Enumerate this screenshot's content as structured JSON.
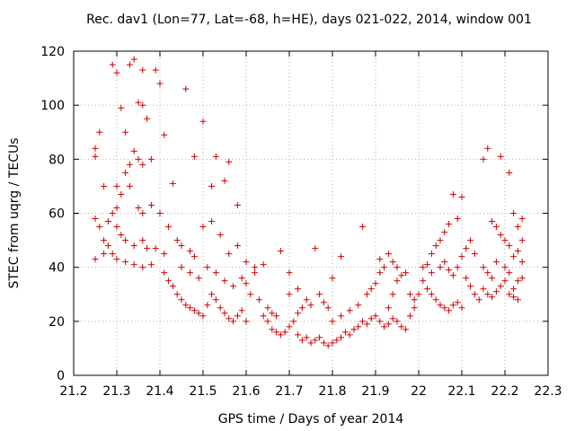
{
  "chart_data": {
    "type": "scatter",
    "title": "Rec. dav1 (Lon=77, Lat=-68, h=HE), days 021-022, 2014, window 001",
    "xlabel": "GPS time / Days of year 2014",
    "ylabel": "STEC from uqrg / TECUs",
    "xlim": [
      21.2,
      22.3
    ],
    "ylim": [
      0,
      120
    ],
    "x_ticks": [
      "21.2",
      "21.3",
      "21.4",
      "21.5",
      "21.6",
      "21.7",
      "21.8",
      "21.9",
      "22",
      "22.1",
      "22.2",
      "22.3"
    ],
    "y_ticks": [
      "0",
      "20",
      "40",
      "60",
      "80",
      "100",
      "120"
    ],
    "grid": true,
    "marker": "+",
    "colors": {
      "points": "#cc0000",
      "grid": "#b0b0b0",
      "axis": "#000000"
    },
    "series": [
      {
        "points": [
          [
            21.25,
            84
          ],
          [
            21.25,
            81
          ],
          [
            21.26,
            90
          ],
          [
            21.27,
            70
          ],
          [
            21.25,
            58
          ],
          [
            21.26,
            55
          ],
          [
            21.27,
            50
          ],
          [
            21.28,
            48
          ],
          [
            21.25,
            43
          ],
          [
            21.27,
            45
          ],
          [
            21.29,
            115
          ],
          [
            21.3,
            112
          ],
          [
            21.31,
            99
          ],
          [
            21.32,
            90
          ],
          [
            21.33,
            115
          ],
          [
            21.34,
            117
          ],
          [
            21.35,
            101
          ],
          [
            21.36,
            113
          ],
          [
            21.36,
            100
          ],
          [
            21.37,
            95
          ],
          [
            21.39,
            113
          ],
          [
            21.4,
            108
          ],
          [
            21.32,
            75
          ],
          [
            21.33,
            78
          ],
          [
            21.34,
            83
          ],
          [
            21.35,
            80
          ],
          [
            21.36,
            78
          ],
          [
            21.38,
            80
          ],
          [
            21.3,
            70
          ],
          [
            21.31,
            67
          ],
          [
            21.33,
            70
          ],
          [
            21.35,
            62
          ],
          [
            21.36,
            60
          ],
          [
            21.38,
            63
          ],
          [
            21.4,
            60
          ],
          [
            21.29,
            60
          ],
          [
            21.3,
            55
          ],
          [
            21.31,
            52
          ],
          [
            21.32,
            50
          ],
          [
            21.34,
            48
          ],
          [
            21.36,
            50
          ],
          [
            21.37,
            47
          ],
          [
            21.39,
            47
          ],
          [
            21.41,
            45
          ],
          [
            21.29,
            45
          ],
          [
            21.3,
            43
          ],
          [
            21.32,
            42
          ],
          [
            21.34,
            41
          ],
          [
            21.36,
            40
          ],
          [
            21.38,
            41
          ],
          [
            21.41,
            89
          ],
          [
            21.43,
            71
          ],
          [
            21.46,
            106
          ],
          [
            21.48,
            81
          ],
          [
            21.5,
            94
          ],
          [
            21.52,
            70
          ],
          [
            21.53,
            81
          ],
          [
            21.56,
            79
          ],
          [
            21.55,
            72
          ],
          [
            21.58,
            63
          ],
          [
            21.42,
            55
          ],
          [
            21.44,
            50
          ],
          [
            21.45,
            48
          ],
          [
            21.47,
            46
          ],
          [
            21.48,
            44
          ],
          [
            21.5,
            55
          ],
          [
            21.52,
            57
          ],
          [
            21.54,
            52
          ],
          [
            21.56,
            45
          ],
          [
            21.58,
            48
          ],
          [
            21.41,
            38
          ],
          [
            21.42,
            35
          ],
          [
            21.43,
            33
          ],
          [
            21.44,
            30
          ],
          [
            21.45,
            28
          ],
          [
            21.46,
            26
          ],
          [
            21.47,
            25
          ],
          [
            21.48,
            24
          ],
          [
            21.49,
            23
          ],
          [
            21.5,
            22
          ],
          [
            21.51,
            26
          ],
          [
            21.52,
            30
          ],
          [
            21.53,
            28
          ],
          [
            21.54,
            25
          ],
          [
            21.55,
            23
          ],
          [
            21.56,
            21
          ],
          [
            21.57,
            20
          ],
          [
            21.58,
            22
          ],
          [
            21.59,
            24
          ],
          [
            21.6,
            20
          ],
          [
            21.45,
            40
          ],
          [
            21.47,
            38
          ],
          [
            21.49,
            36
          ],
          [
            21.51,
            40
          ],
          [
            21.53,
            38
          ],
          [
            21.55,
            35
          ],
          [
            21.57,
            33
          ],
          [
            21.59,
            36
          ],
          [
            21.6,
            34
          ],
          [
            21.62,
            38
          ],
          [
            21.6,
            42
          ],
          [
            21.62,
            40
          ],
          [
            21.64,
            41
          ],
          [
            21.61,
            30
          ],
          [
            21.63,
            28
          ],
          [
            21.65,
            25
          ],
          [
            21.66,
            23
          ],
          [
            21.67,
            22
          ],
          [
            21.68,
            46
          ],
          [
            21.7,
            38
          ],
          [
            21.64,
            22
          ],
          [
            21.65,
            20
          ],
          [
            21.66,
            17
          ],
          [
            21.67,
            16
          ],
          [
            21.68,
            15
          ],
          [
            21.69,
            16
          ],
          [
            21.7,
            18
          ],
          [
            21.71,
            20
          ],
          [
            21.72,
            23
          ],
          [
            21.73,
            25
          ],
          [
            21.7,
            30
          ],
          [
            21.72,
            32
          ],
          [
            21.74,
            28
          ],
          [
            21.75,
            26
          ],
          [
            21.76,
            47
          ],
          [
            21.77,
            30
          ],
          [
            21.78,
            27
          ],
          [
            21.79,
            25
          ],
          [
            21.8,
            36
          ],
          [
            21.82,
            44
          ],
          [
            21.72,
            15
          ],
          [
            21.73,
            13
          ],
          [
            21.74,
            14
          ],
          [
            21.75,
            12
          ],
          [
            21.76,
            13
          ],
          [
            21.77,
            14
          ],
          [
            21.78,
            12
          ],
          [
            21.79,
            11
          ],
          [
            21.8,
            12
          ],
          [
            21.81,
            13
          ],
          [
            21.82,
            14
          ],
          [
            21.83,
            16
          ],
          [
            21.84,
            15
          ],
          [
            21.85,
            17
          ],
          [
            21.86,
            18
          ],
          [
            21.87,
            20
          ],
          [
            21.88,
            19
          ],
          [
            21.89,
            21
          ],
          [
            21.9,
            22
          ],
          [
            21.91,
            20
          ],
          [
            21.8,
            20
          ],
          [
            21.82,
            22
          ],
          [
            21.84,
            24
          ],
          [
            21.86,
            26
          ],
          [
            21.87,
            55
          ],
          [
            21.88,
            30
          ],
          [
            21.89,
            32
          ],
          [
            21.9,
            34
          ],
          [
            21.91,
            38
          ],
          [
            21.92,
            40
          ],
          [
            21.92,
            18
          ],
          [
            21.93,
            19
          ],
          [
            21.94,
            21
          ],
          [
            21.95,
            20
          ],
          [
            21.96,
            18
          ],
          [
            21.97,
            17
          ],
          [
            21.93,
            25
          ],
          [
            21.94,
            30
          ],
          [
            21.95,
            35
          ],
          [
            21.96,
            37
          ],
          [
            21.91,
            43
          ],
          [
            21.93,
            45
          ],
          [
            21.94,
            42
          ],
          [
            21.95,
            40
          ],
          [
            21.97,
            38
          ],
          [
            21.98,
            30
          ],
          [
            21.99,
            28
          ],
          [
            21.98,
            22
          ],
          [
            21.99,
            25
          ],
          [
            22.0,
            30
          ],
          [
            22.01,
            40
          ],
          [
            22.02,
            41
          ],
          [
            22.03,
            45
          ],
          [
            22.04,
            48
          ],
          [
            22.05,
            50
          ],
          [
            22.06,
            53
          ],
          [
            22.07,
            56
          ],
          [
            22.08,
            67
          ],
          [
            22.1,
            66
          ],
          [
            22.09,
            58
          ],
          [
            22.01,
            35
          ],
          [
            22.02,
            32
          ],
          [
            22.03,
            30
          ],
          [
            22.04,
            28
          ],
          [
            22.05,
            26
          ],
          [
            22.06,
            25
          ],
          [
            22.07,
            24
          ],
          [
            22.08,
            26
          ],
          [
            22.09,
            27
          ],
          [
            22.1,
            25
          ],
          [
            22.03,
            38
          ],
          [
            22.05,
            40
          ],
          [
            22.06,
            42
          ],
          [
            22.07,
            39
          ],
          [
            22.08,
            37
          ],
          [
            22.09,
            40
          ],
          [
            22.1,
            44
          ],
          [
            22.11,
            47
          ],
          [
            22.12,
            50
          ],
          [
            22.13,
            45
          ],
          [
            22.11,
            36
          ],
          [
            22.12,
            33
          ],
          [
            22.13,
            30
          ],
          [
            22.14,
            28
          ],
          [
            22.15,
            32
          ],
          [
            22.16,
            30
          ],
          [
            22.17,
            29
          ],
          [
            22.18,
            31
          ],
          [
            22.19,
            33
          ],
          [
            22.2,
            35
          ],
          [
            22.15,
            80
          ],
          [
            22.16,
            84
          ],
          [
            22.19,
            81
          ],
          [
            22.21,
            75
          ],
          [
            22.17,
            57
          ],
          [
            22.18,
            55
          ],
          [
            22.19,
            52
          ],
          [
            22.2,
            50
          ],
          [
            22.21,
            48
          ],
          [
            22.22,
            60
          ],
          [
            22.15,
            40
          ],
          [
            22.16,
            38
          ],
          [
            22.17,
            36
          ],
          [
            22.18,
            42
          ],
          [
            22.2,
            40
          ],
          [
            22.21,
            38
          ],
          [
            22.22,
            44
          ],
          [
            22.23,
            46
          ],
          [
            22.24,
            50
          ],
          [
            22.23,
            55
          ],
          [
            22.21,
            30
          ],
          [
            22.22,
            29
          ],
          [
            22.23,
            35
          ],
          [
            22.24,
            36
          ],
          [
            22.24,
            42
          ],
          [
            22.24,
            58
          ],
          [
            22.23,
            28
          ],
          [
            22.22,
            32
          ],
          [
            21.3,
            62
          ],
          [
            21.28,
            57
          ]
        ]
      }
    ]
  }
}
